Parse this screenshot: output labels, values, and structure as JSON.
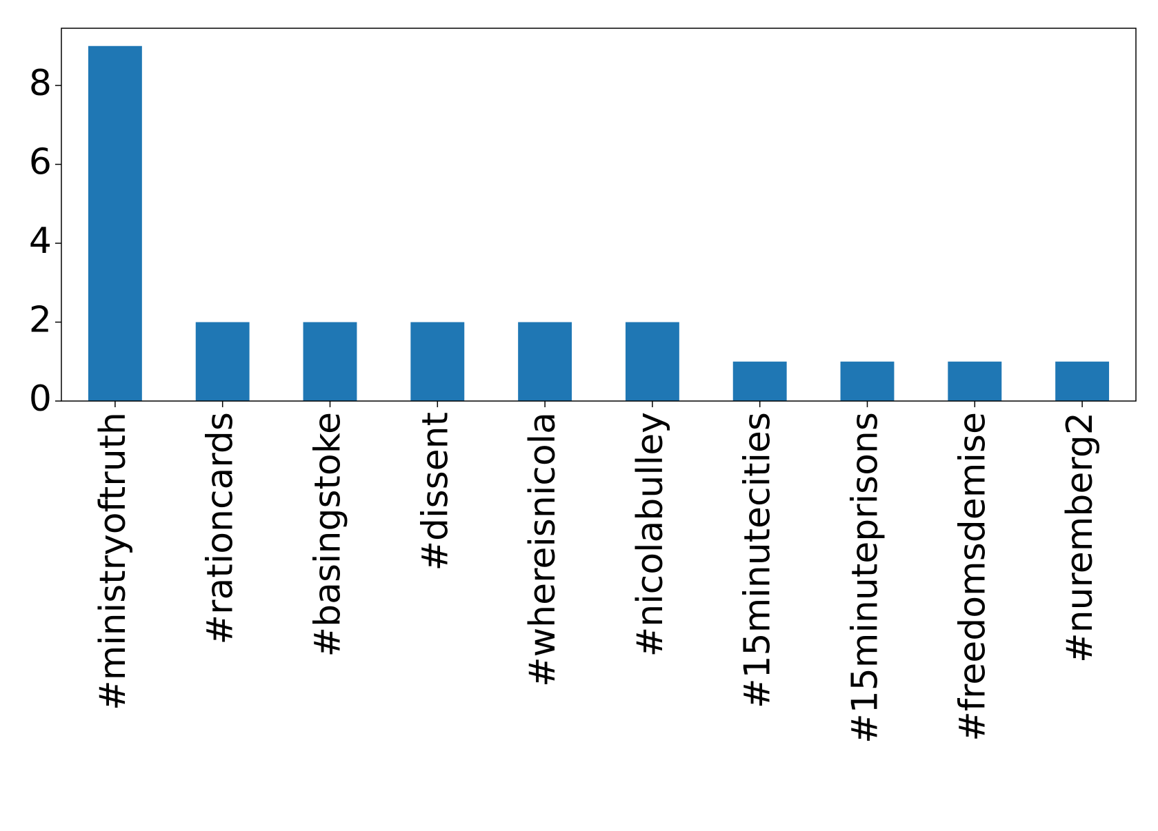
{
  "chart_data": {
    "type": "bar",
    "categories": [
      "#ministryoftruth",
      "#rationcards",
      "#basingstoke",
      "#dissent",
      "#whereisnicola",
      "#nicolabulley",
      "#15minutecities",
      "#15minuteprisons",
      "#freedomsdemise",
      "#nuremberg2"
    ],
    "values": [
      9,
      2,
      2,
      2,
      2,
      2,
      1,
      1,
      1,
      1
    ],
    "color": "#1f77b4",
    "ylim": [
      0,
      9.45
    ],
    "yticks": [
      0,
      2,
      4,
      6,
      8
    ],
    "grid": false
  }
}
